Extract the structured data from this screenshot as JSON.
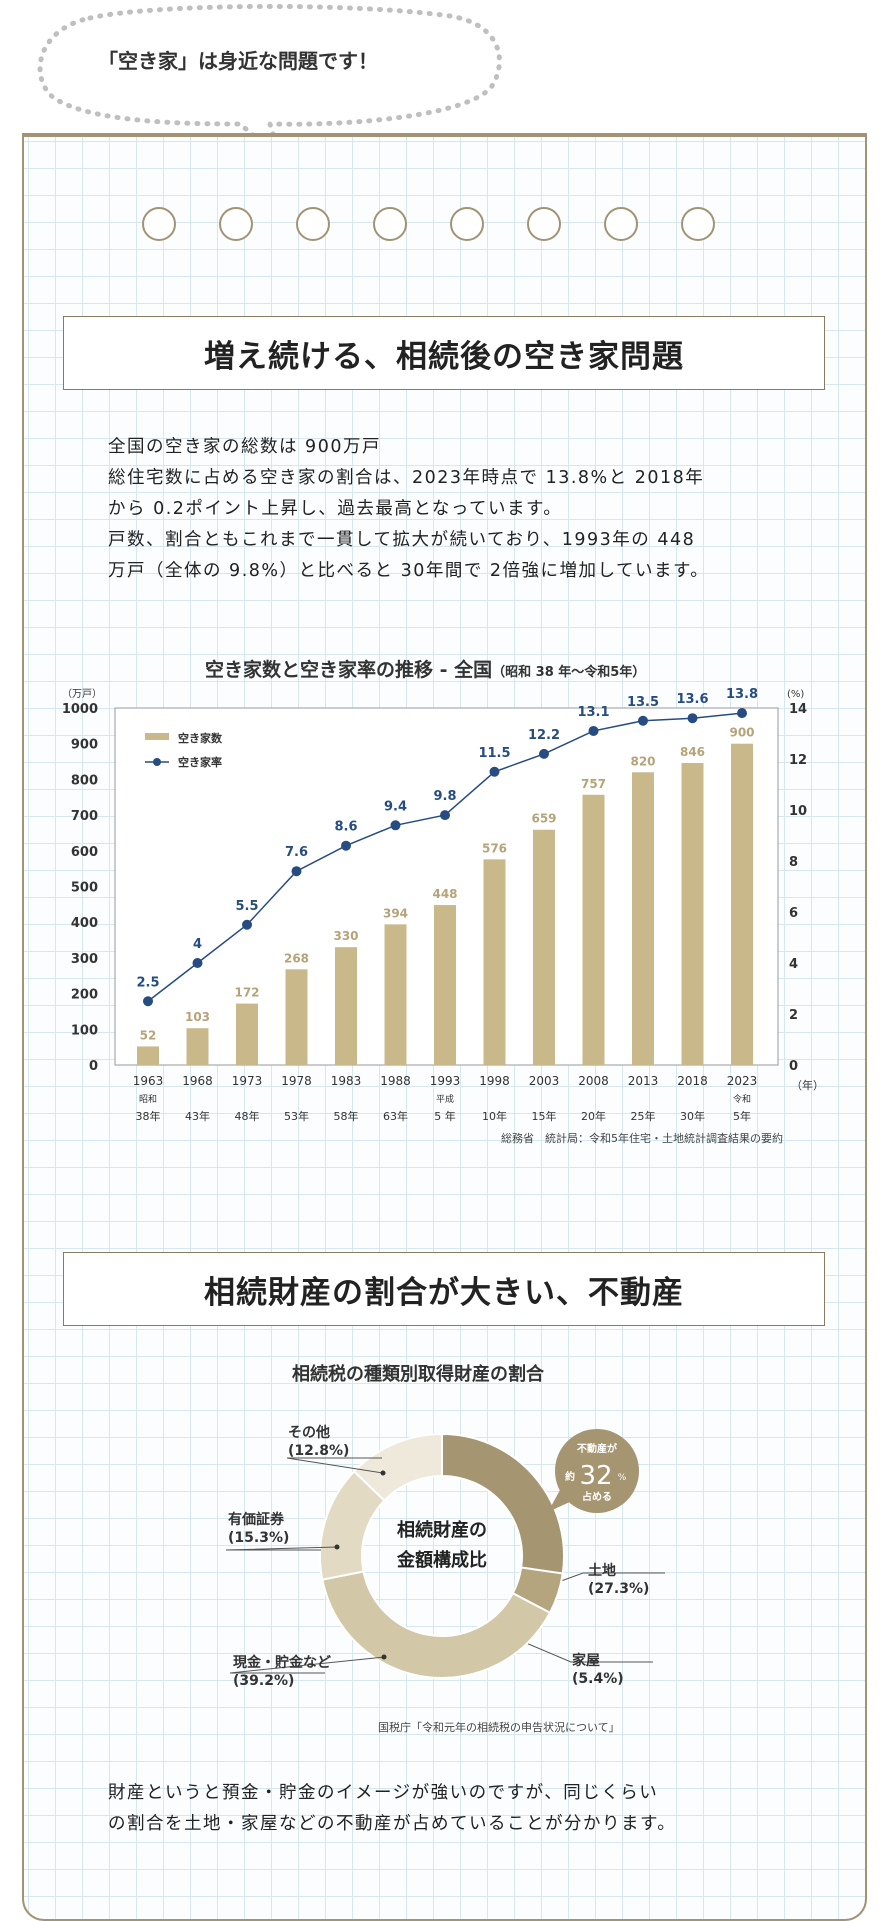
{
  "bubble_text": "「空き家」は身近な問題です！",
  "section1": {
    "title": "増え続ける、相続後の空き家問題",
    "lines": [
      "全国の空き家の総数は 900万戸",
      "総住宅数に占める空き家の割合は、2023年時点で 13.8%と 2018年",
      "から 0.2ポイント上昇し、過去最高となっています。",
      "戸数、割合ともこれまで一貫して拡大が続いており、1993年の 448",
      "万戸（全体の 9.8%）と比べると 30年間で 2倍強に増加しています。"
    ]
  },
  "bar_chart_title": "空き家数と空き家率の推移 - 全国",
  "bar_chart_subtitle": "（昭和 38 年〜令和5年）",
  "bar_chart_source": "総務省　統計局：令和5年住宅・土地統計調査結果の要約",
  "section2": {
    "title": "相続財産の割合が大きい、不動産",
    "lines": [
      "財産というと預金・貯金のイメージが強いのですが、同じくらい",
      "の割合を土地・家屋などの不動産が占めていることが分かります。"
    ]
  },
  "donut_title": "相続税の種類別取得財産の割合",
  "donut_source": "国税庁「令和元年の相続税の申告状況について」",
  "colors": {
    "bar": "#c8b88a",
    "line": "#264c82",
    "frame": "#a29374"
  },
  "chart_data": [
    {
      "type": "bar",
      "categories": [
        "1963",
        "1968",
        "1973",
        "1978",
        "1983",
        "1988",
        "1993",
        "1998",
        "2003",
        "2008",
        "2013",
        "2018",
        "2023"
      ],
      "era_labels": [
        "38年",
        "43年",
        "48年",
        "53年",
        "58年",
        "63年",
        "5 年",
        "10年",
        "15年",
        "20年",
        "25年",
        "30年",
        "5年"
      ],
      "era_names": {
        "0": "昭和",
        "6": "平成",
        "12": "令和"
      },
      "series": [
        {
          "name": "空き家数",
          "axis": "left",
          "values": [
            52,
            103,
            172,
            268,
            330,
            394,
            448,
            576,
            659,
            757,
            820,
            846,
            900
          ]
        },
        {
          "name": "空き家率",
          "axis": "right",
          "type": "line",
          "values": [
            2.5,
            4,
            5.5,
            7.6,
            8.6,
            9.4,
            9.8,
            11.5,
            12.2,
            13.1,
            13.5,
            13.6,
            13.8
          ]
        }
      ],
      "ylabel_left": "（万戸）",
      "ylabel_right": "(%)",
      "xlabel": "（年）",
      "ylim_left": [
        0,
        1000
      ],
      "yticks_left": [
        0,
        100,
        200,
        300,
        400,
        500,
        600,
        700,
        800,
        900,
        1000
      ],
      "ylim_right": [
        0,
        14
      ],
      "yticks_right": [
        0,
        2,
        4,
        6,
        8,
        10,
        12,
        14
      ],
      "grid": false,
      "legend": "top-left"
    },
    {
      "type": "pie",
      "center_label": [
        "相続財産の",
        "金額構成比"
      ],
      "slices": [
        {
          "label": "土地",
          "value": 27.3,
          "display": "(27.3%)",
          "color": "#a59570"
        },
        {
          "label": "家屋",
          "value": 5.4,
          "display": "(5.4%)",
          "color": "#b4a57f"
        },
        {
          "label": "現金・貯金など",
          "value": 39.2,
          "display": "(39.2%)",
          "color": "#d2c8a8"
        },
        {
          "label": "有価証券",
          "value": 15.3,
          "display": "(15.3%)",
          "color": "#e2dac3"
        },
        {
          "label": "その他",
          "value": 12.8,
          "display": "(12.8%)",
          "color": "#eee9db"
        }
      ],
      "callout": {
        "top": "不動産が",
        "prefix": "約",
        "value": "32",
        "unit": "%",
        "bottom": "占める"
      }
    }
  ]
}
